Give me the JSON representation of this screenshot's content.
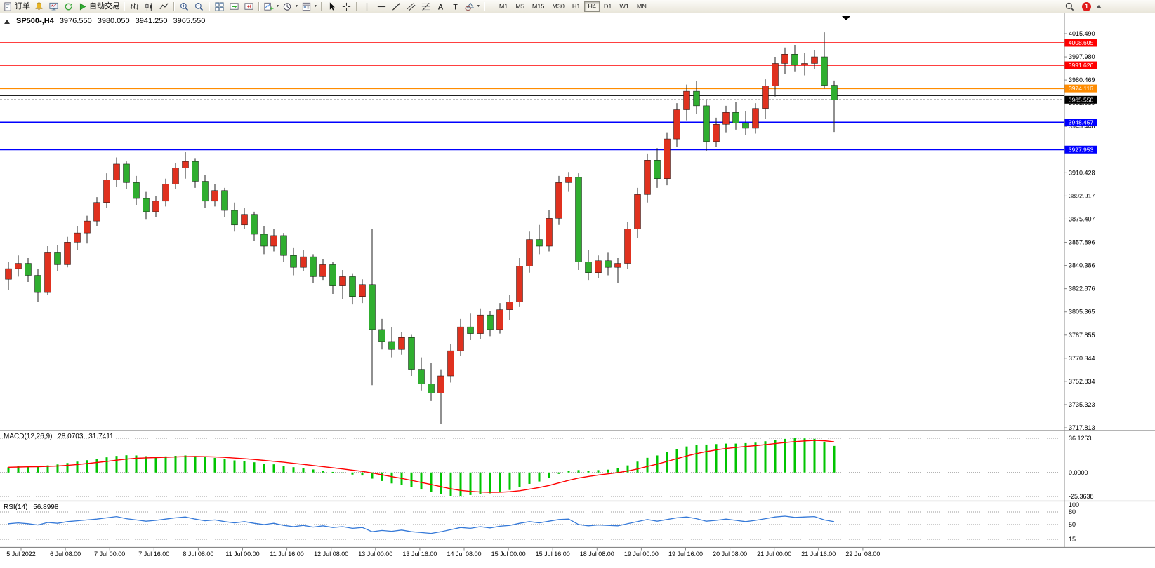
{
  "toolbar": {
    "new_order_label": "订单",
    "autotrading_label": "自动交易",
    "timeframes": [
      "M1",
      "M5",
      "M15",
      "M30",
      "H1",
      "H4",
      "D1",
      "W1",
      "MN"
    ],
    "active_timeframe": "H4",
    "notification_count": "1"
  },
  "symbol_bar": {
    "symbol": "SP500-,H4",
    "open": "3976.550",
    "high": "3980.050",
    "low": "3941.250",
    "close": "3965.550"
  },
  "chart_data": {
    "type": "candlestick",
    "symbol": "SP500-",
    "timeframe": "H4",
    "colors": {
      "up": "#e0311f",
      "down": "#2fae2f",
      "macd_histogram": "#00c400",
      "macd_signal": "#ff0000",
      "rsi_line": "#3579d8",
      "hline_red": "#ff0000",
      "hline_orange": "#ff8c00",
      "hline_blue": "#0000ff"
    },
    "price_axis": {
      "top": 4015.49,
      "bottom": 3717.813,
      "labels": [
        "4015.490",
        "3997.980",
        "3980.469",
        "3962.959",
        "3945.448",
        "3927.938",
        "3910.428",
        "3892.917",
        "3875.407",
        "3857.896",
        "3840.386",
        "3822.876",
        "3805.365",
        "3787.855",
        "3770.344",
        "3752.834",
        "3735.323",
        "3717.813"
      ]
    },
    "hlines": [
      {
        "price": 4008.605,
        "label": "4008.605",
        "color": "#ff0000",
        "width": 1.4
      },
      {
        "price": 3991.626,
        "label": "3991.626",
        "color": "#ff0000",
        "width": 1.4
      },
      {
        "price": 3974.116,
        "label": "3974.116",
        "color": "#ff8c00",
        "width": 2
      },
      {
        "price": 3968.8,
        "label": "",
        "color": "#000000",
        "width": 1.5
      },
      {
        "price": 3948.457,
        "label": "3948.457",
        "color": "#0000ff",
        "width": 2
      },
      {
        "price": 3927.953,
        "label": "3927.953",
        "color": "#0000ff",
        "width": 2
      }
    ],
    "bid_line": {
      "price": 3965.55,
      "label": "3965.550",
      "color": "#000000"
    },
    "ohlc": [
      [
        3830,
        3843,
        3822,
        3838
      ],
      [
        3838,
        3848,
        3832,
        3842
      ],
      [
        3842,
        3846,
        3828,
        3833
      ],
      [
        3833,
        3838,
        3813,
        3820
      ],
      [
        3820,
        3855,
        3818,
        3850
      ],
      [
        3850,
        3856,
        3836,
        3841
      ],
      [
        3841,
        3862,
        3839,
        3858
      ],
      [
        3858,
        3870,
        3852,
        3865
      ],
      [
        3865,
        3878,
        3857,
        3874
      ],
      [
        3874,
        3892,
        3870,
        3888
      ],
      [
        3888,
        3910,
        3884,
        3905
      ],
      [
        3905,
        3922,
        3900,
        3917
      ],
      [
        3917,
        3919,
        3898,
        3903
      ],
      [
        3903,
        3908,
        3886,
        3891
      ],
      [
        3891,
        3896,
        3875,
        3881
      ],
      [
        3881,
        3893,
        3877,
        3889
      ],
      [
        3889,
        3906,
        3885,
        3902
      ],
      [
        3902,
        3918,
        3898,
        3914
      ],
      [
        3914,
        3926,
        3906,
        3919
      ],
      [
        3919,
        3921,
        3899,
        3904
      ],
      [
        3904,
        3909,
        3884,
        3889
      ],
      [
        3889,
        3902,
        3885,
        3897
      ],
      [
        3897,
        3899,
        3877,
        3882
      ],
      [
        3882,
        3888,
        3866,
        3871
      ],
      [
        3871,
        3884,
        3868,
        3879
      ],
      [
        3879,
        3881,
        3859,
        3864
      ],
      [
        3864,
        3870,
        3849,
        3855
      ],
      [
        3855,
        3868,
        3851,
        3863
      ],
      [
        3863,
        3865,
        3843,
        3848
      ],
      [
        3848,
        3854,
        3833,
        3839
      ],
      [
        3839,
        3852,
        3836,
        3847
      ],
      [
        3847,
        3849,
        3827,
        3832
      ],
      [
        3832,
        3845,
        3829,
        3841
      ],
      [
        3841,
        3843,
        3819,
        3825
      ],
      [
        3825,
        3837,
        3815,
        3832
      ],
      [
        3832,
        3834,
        3811,
        3817
      ],
      [
        3817,
        3830,
        3812,
        3826
      ],
      [
        3826,
        3868,
        3750,
        3792
      ],
      [
        3792,
        3800,
        3777,
        3783
      ],
      [
        3783,
        3794,
        3771,
        3777
      ],
      [
        3777,
        3790,
        3773,
        3786
      ],
      [
        3786,
        3788,
        3757,
        3762
      ],
      [
        3762,
        3771,
        3746,
        3751
      ],
      [
        3751,
        3767,
        3738,
        3744
      ],
      [
        3744,
        3762,
        3721,
        3757
      ],
      [
        3757,
        3781,
        3752,
        3776
      ],
      [
        3776,
        3800,
        3772,
        3794
      ],
      [
        3794,
        3804,
        3784,
        3789
      ],
      [
        3789,
        3808,
        3785,
        3803
      ],
      [
        3803,
        3806,
        3787,
        3792
      ],
      [
        3792,
        3812,
        3789,
        3807
      ],
      [
        3807,
        3818,
        3799,
        3813
      ],
      [
        3813,
        3846,
        3809,
        3840
      ],
      [
        3840,
        3866,
        3835,
        3860
      ],
      [
        3860,
        3871,
        3849,
        3855
      ],
      [
        3855,
        3882,
        3851,
        3876
      ],
      [
        3876,
        3908,
        3871,
        3903
      ],
      [
        3903,
        3911,
        3896,
        3907
      ],
      [
        3907,
        3910,
        3837,
        3843
      ],
      [
        3843,
        3852,
        3829,
        3835
      ],
      [
        3835,
        3848,
        3831,
        3844
      ],
      [
        3844,
        3850,
        3833,
        3839
      ],
      [
        3839,
        3846,
        3827,
        3842
      ],
      [
        3842,
        3873,
        3838,
        3868
      ],
      [
        3868,
        3899,
        3861,
        3894
      ],
      [
        3894,
        3925,
        3888,
        3920
      ],
      [
        3920,
        3929,
        3899,
        3906
      ],
      [
        3906,
        3941,
        3901,
        3936
      ],
      [
        3936,
        3963,
        3930,
        3958
      ],
      [
        3958,
        3977,
        3950,
        3972
      ],
      [
        3972,
        3980,
        3955,
        3961
      ],
      [
        3961,
        3966,
        3927,
        3934
      ],
      [
        3934,
        3952,
        3930,
        3947
      ],
      [
        3947,
        3961,
        3941,
        3956
      ],
      [
        3956,
        3964,
        3943,
        3948
      ],
      [
        3948,
        3957,
        3939,
        3944
      ],
      [
        3944,
        3963,
        3940,
        3959
      ],
      [
        3959,
        3981,
        3951,
        3976
      ],
      [
        3976,
        3998,
        3968,
        3993
      ],
      [
        3993,
        4005,
        3985,
        4000
      ],
      [
        4000,
        4007,
        3987,
        3992
      ],
      [
        3992,
        4001,
        3984,
        3993
      ],
      [
        3993,
        4003,
        3989,
        3998
      ],
      [
        3998,
        4016.5,
        3974,
        3976.5
      ],
      [
        3976.55,
        3980.05,
        3941.25,
        3965.55
      ]
    ],
    "macd": {
      "name": "MACD(12,26,9)",
      "value_main": "28.0703",
      "value_signal": "31.7411",
      "scale_labels": [
        "36.1263",
        "0.0000",
        "-25.3638"
      ],
      "max": 36.1263,
      "min": -25.3638,
      "histogram": [
        5.5,
        6.5,
        7,
        6.5,
        7.5,
        8.5,
        10,
        11.5,
        13,
        14.5,
        16,
        17.5,
        18.2,
        18,
        17.2,
        16.8,
        17,
        17.6,
        18,
        17.4,
        16.2,
        15.4,
        14.2,
        12.8,
        12,
        10.8,
        9.4,
        8.6,
        7.2,
        5.6,
        4.6,
        3.2,
        2,
        0.6,
        -0.6,
        -2.2,
        -3.2,
        -6.5,
        -9,
        -11.5,
        -13,
        -15.5,
        -18,
        -20.5,
        -23,
        -25.36,
        -24.8,
        -23.8,
        -23,
        -22,
        -20.5,
        -18.5,
        -15.5,
        -12,
        -9.5,
        -6,
        -1.5,
        1.5,
        2.5,
        2,
        2.5,
        3,
        4.5,
        7.5,
        11.5,
        15.5,
        18,
        21.5,
        25,
        27.5,
        29,
        29.5,
        30,
        30.5,
        30.5,
        31,
        31.5,
        33,
        34.5,
        35.5,
        36.1,
        36,
        35.5,
        32.5,
        28.07
      ]
    },
    "rsi": {
      "name": "RSI(14)",
      "value": "56.8998",
      "scale_labels": [
        "100",
        "80",
        "50",
        "15"
      ],
      "levels": [
        80,
        50,
        15
      ],
      "range": [
        0,
        100
      ],
      "values": [
        52,
        54,
        52,
        49,
        55,
        53,
        57,
        59,
        61,
        63,
        66,
        69,
        64,
        61,
        58,
        60,
        63,
        66,
        68,
        63,
        59,
        61,
        57,
        54,
        57,
        53,
        50,
        53,
        48,
        45,
        48,
        44,
        47,
        43,
        45,
        41,
        43,
        33,
        36,
        34,
        37,
        33,
        31,
        29,
        33,
        38,
        43,
        41,
        45,
        42,
        46,
        48,
        53,
        57,
        54,
        58,
        62,
        63,
        50,
        47,
        49,
        48,
        47,
        52,
        57,
        62,
        58,
        62,
        66,
        68,
        64,
        58,
        60,
        63,
        60,
        57,
        60,
        64,
        68,
        70,
        67,
        68,
        69,
        61,
        56.9
      ]
    },
    "time_axis": [
      "5 Jul 2022",
      "6 Jul 08:00",
      "7 Jul 00:00",
      "7 Jul 16:00",
      "8 Jul 08:00",
      "11 Jul 00:00",
      "11 Jul 16:00",
      "12 Jul 08:00",
      "13 Jul 00:00",
      "13 Jul 16:00",
      "14 Jul 08:00",
      "15 Jul 00:00",
      "15 Jul 16:00",
      "18 Jul 08:00",
      "19 Jul 00:00",
      "19 Jul 16:00",
      "20 Jul 08:00",
      "21 Jul 00:00",
      "21 Jul 16:00",
      "22 Jul 08:00"
    ]
  }
}
